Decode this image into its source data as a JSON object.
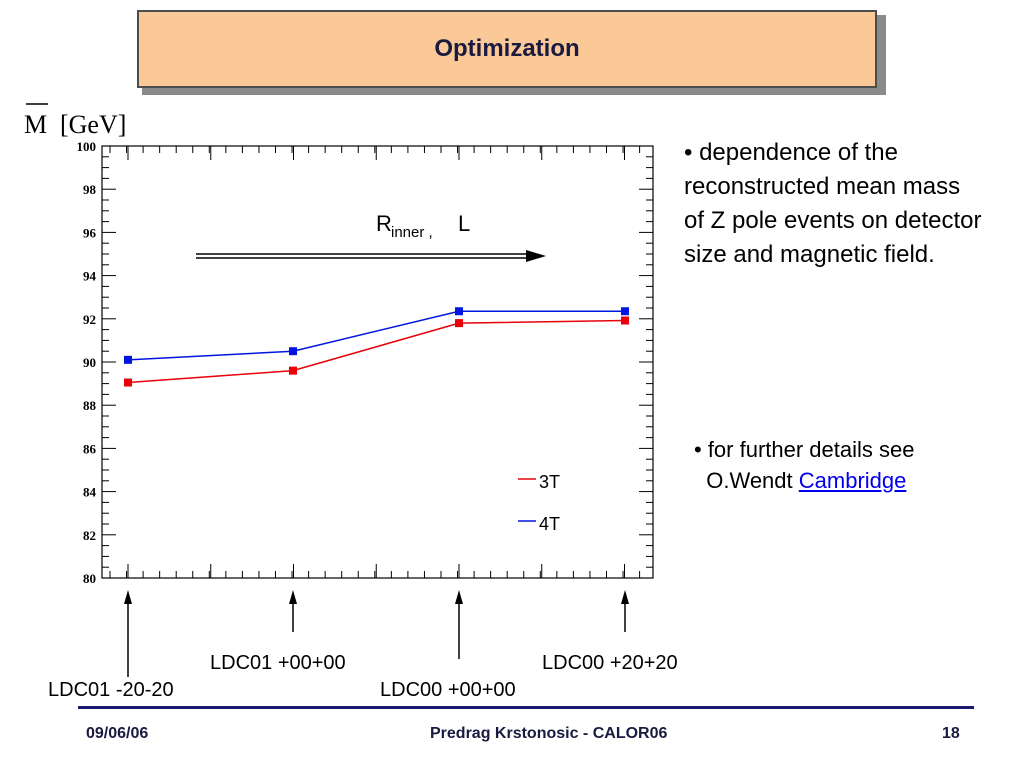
{
  "slide_title": "Optimization",
  "bullets": {
    "first": "• dependence of the reconstructed mean mass of Z pole events on detector size and magnetic field.",
    "second_prefix": "• for further details see",
    "second_name": "O.Wendt",
    "second_link": "Cambridge"
  },
  "configurations": [
    "LDC01 -20-20",
    "LDC01 +00+00",
    "LDC00 +00+00",
    "LDC00 +20+20"
  ],
  "footer": {
    "date": "09/06/06",
    "author": "Predrag Krstonosic -  CALOR06",
    "page": "18"
  },
  "colors": {
    "series_3T": "#e8000b",
    "series_4T": "#0016e0",
    "title_box": "#fbc897"
  },
  "chart_data": {
    "type": "line",
    "y_axis_symbol": "M",
    "y_axis_unit": "[GeV]",
    "annotation_main": "R",
    "annotation_sub": "inner ,",
    "annotation_tail": "L",
    "ylim": [
      80,
      100
    ],
    "yticks": [
      "80",
      "82",
      "84",
      "86",
      "88",
      "90",
      "92",
      "94",
      "96",
      "98",
      "100"
    ],
    "x": [
      1,
      2,
      3,
      4
    ],
    "series": [
      {
        "name": "3T",
        "values": [
          89.05,
          89.6,
          91.8,
          91.92
        ]
      },
      {
        "name": "4T",
        "values": [
          90.1,
          90.5,
          92.35,
          92.35
        ]
      }
    ],
    "legend_position": "bottom-right",
    "grid": false
  }
}
